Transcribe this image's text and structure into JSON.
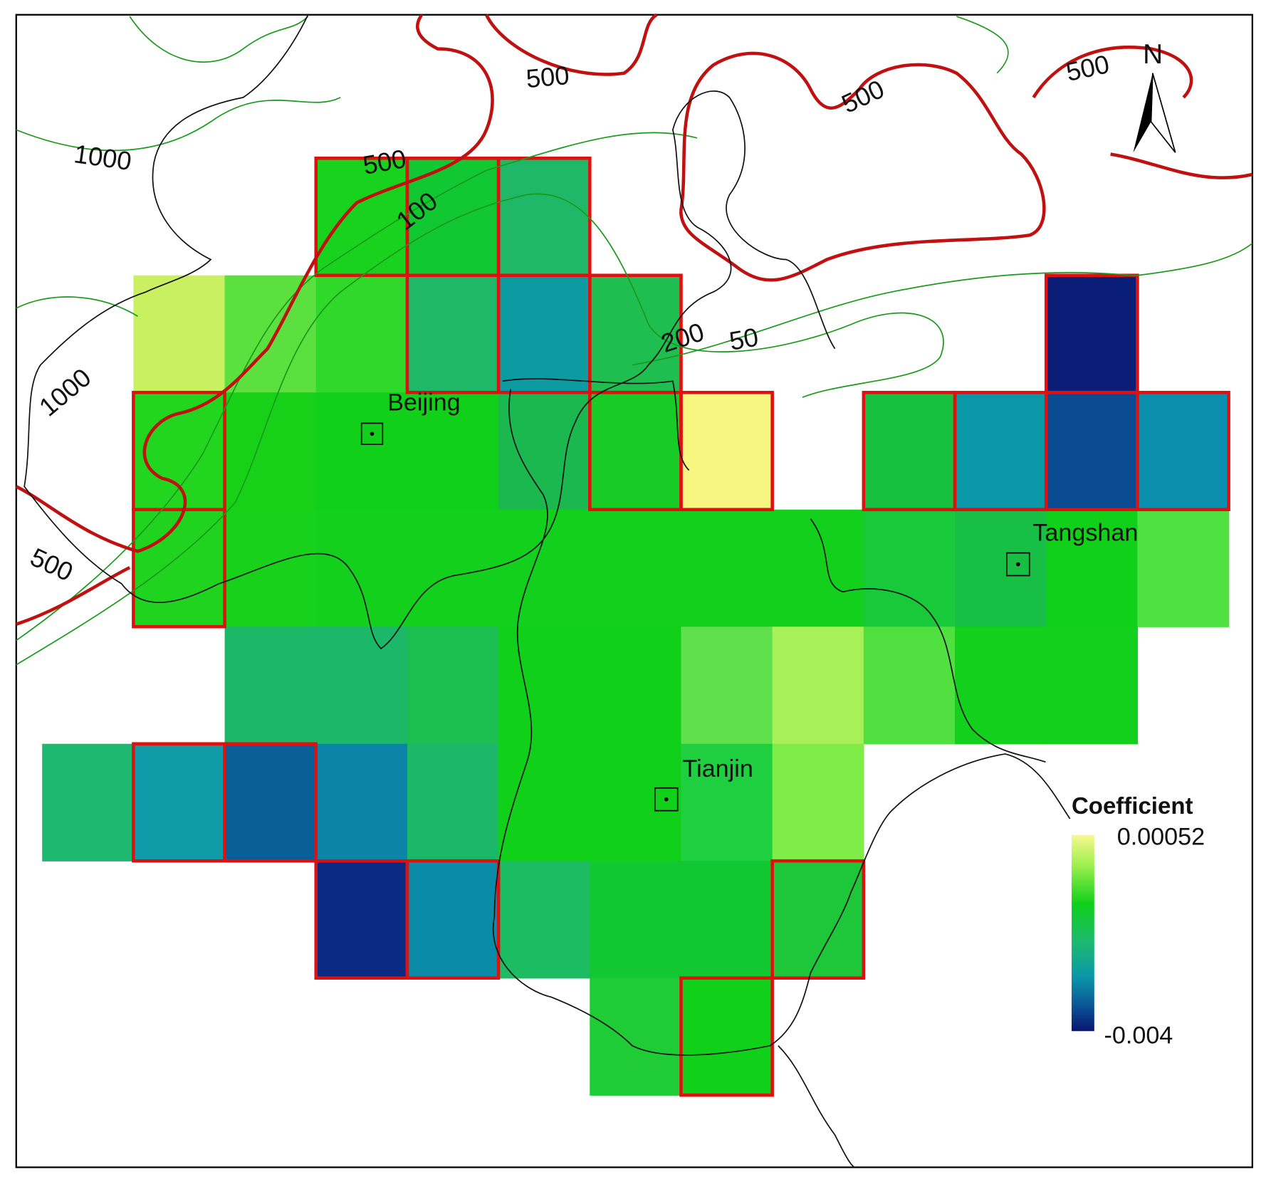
{
  "cities": [
    {
      "label": "Beijing"
    },
    {
      "label": "Tangshan"
    },
    {
      "label": "Tianjin"
    }
  ],
  "contour_labels": [
    "500",
    "500",
    "500",
    "500",
    "1000",
    "100",
    "200",
    "50",
    "1000",
    "500"
  ],
  "north_arrow": {
    "label": "N"
  },
  "legend": {
    "title": "Coefficient",
    "max_label": "0.00052",
    "min_label": "-0.004"
  }
}
